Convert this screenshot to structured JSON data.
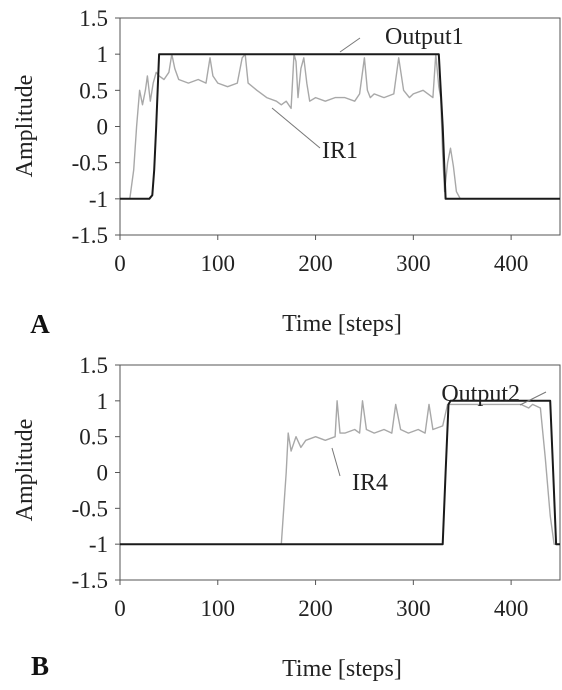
{
  "chart_data": [
    {
      "type": "line",
      "panel_label": "A",
      "xlabel": "Time [steps]",
      "ylabel": "Amplitude",
      "xlim": [
        0,
        450
      ],
      "ylim": [
        -1.5,
        1.5
      ],
      "xticks": [
        "0",
        "100",
        "200",
        "300",
        "400"
      ],
      "yticks": [
        "1.5",
        "1",
        "0.5",
        "0",
        "-0.5",
        "-1",
        "-1.5"
      ],
      "grid": false,
      "series": [
        {
          "name": "Output1",
          "color": "#1a1a1a",
          "x": [
            0,
            30,
            33,
            35,
            37,
            40,
            320,
            326,
            330,
            333,
            450
          ],
          "y": [
            -1,
            -1,
            -0.95,
            -0.6,
            0,
            1,
            1,
            1,
            0,
            -1,
            -1
          ]
        },
        {
          "name": "IR1",
          "color": "#a8a8a8",
          "x": [
            0,
            10,
            14,
            17,
            20,
            23,
            26,
            28,
            31,
            34,
            37,
            40,
            45,
            50,
            53,
            56,
            60,
            70,
            80,
            88,
            92,
            95,
            100,
            110,
            120,
            125,
            128,
            131,
            140,
            150,
            160,
            165,
            170,
            175,
            178,
            180,
            182,
            185,
            188,
            191,
            194,
            200,
            210,
            220,
            230,
            240,
            245,
            250,
            253,
            256,
            260,
            270,
            280,
            285,
            290,
            293,
            296,
            300,
            310,
            320,
            323,
            326,
            328,
            330,
            332,
            335,
            338,
            341,
            344,
            348,
            450
          ],
          "y": [
            -1,
            -1,
            -0.6,
            0,
            0.5,
            0.3,
            0.5,
            0.7,
            0.35,
            0.6,
            0.75,
            0.7,
            0.65,
            0.75,
            1,
            0.8,
            0.65,
            0.6,
            0.65,
            0.6,
            0.95,
            0.7,
            0.6,
            0.55,
            0.6,
            0.95,
            1,
            0.6,
            0.5,
            0.4,
            0.35,
            0.3,
            0.35,
            0.25,
            1,
            0.9,
            0.4,
            0.8,
            0.95,
            0.6,
            0.35,
            0.4,
            0.35,
            0.4,
            0.4,
            0.35,
            0.45,
            0.95,
            0.5,
            0.4,
            0.45,
            0.4,
            0.45,
            0.95,
            0.5,
            0.45,
            0.4,
            0.45,
            0.5,
            0.4,
            1,
            0.55,
            0.4,
            -0.4,
            -0.9,
            -0.5,
            -0.3,
            -0.55,
            -0.9,
            -1,
            -1
          ]
        }
      ],
      "annotations": [
        {
          "text": "Output1",
          "x": 185,
          "y": 1
        },
        {
          "text": "IR1",
          "x": 160,
          "y": 0.35
        }
      ]
    },
    {
      "type": "line",
      "panel_label": "B",
      "xlabel": "Time [steps]",
      "ylabel": "Amplitude",
      "xlim": [
        0,
        450
      ],
      "ylim": [
        -1.5,
        1.5
      ],
      "xticks": [
        "0",
        "100",
        "200",
        "300",
        "400"
      ],
      "yticks": [
        "1.5",
        "1",
        "0.5",
        "0",
        "-0.5",
        "-1",
        "-1.5"
      ],
      "grid": false,
      "series": [
        {
          "name": "Output2",
          "color": "#1a1a1a",
          "x": [
            0,
            330,
            333,
            336,
            338,
            440,
            443,
            446,
            450
          ],
          "y": [
            -1,
            -1,
            0,
            0.95,
            1,
            1,
            0,
            -1,
            -1
          ]
        },
        {
          "name": "IR4",
          "color": "#a8a8a8",
          "x": [
            0,
            165,
            170,
            172,
            175,
            180,
            185,
            190,
            200,
            210,
            220,
            222,
            225,
            230,
            240,
            245,
            248,
            252,
            260,
            270,
            278,
            282,
            287,
            295,
            305,
            312,
            316,
            320,
            330,
            335,
            345,
            360,
            380,
            400,
            410,
            418,
            422,
            430,
            435,
            440,
            444,
            450
          ],
          "y": [
            -1,
            -1,
            0,
            0.55,
            0.3,
            0.5,
            0.35,
            0.45,
            0.5,
            0.45,
            0.5,
            1,
            0.55,
            0.55,
            0.6,
            0.55,
            1,
            0.6,
            0.55,
            0.6,
            0.55,
            0.95,
            0.6,
            0.55,
            0.6,
            0.55,
            0.95,
            0.6,
            0.65,
            0.95,
            0.95,
            0.95,
            0.95,
            0.95,
            0.95,
            0.9,
            0.95,
            0.9,
            0.2,
            -0.6,
            -1,
            -1
          ]
        }
      ],
      "annotations": [
        {
          "text": "Output2",
          "x": 400,
          "y": 1
        },
        {
          "text": "IR4",
          "x": 215,
          "y": 0.3
        }
      ]
    }
  ]
}
